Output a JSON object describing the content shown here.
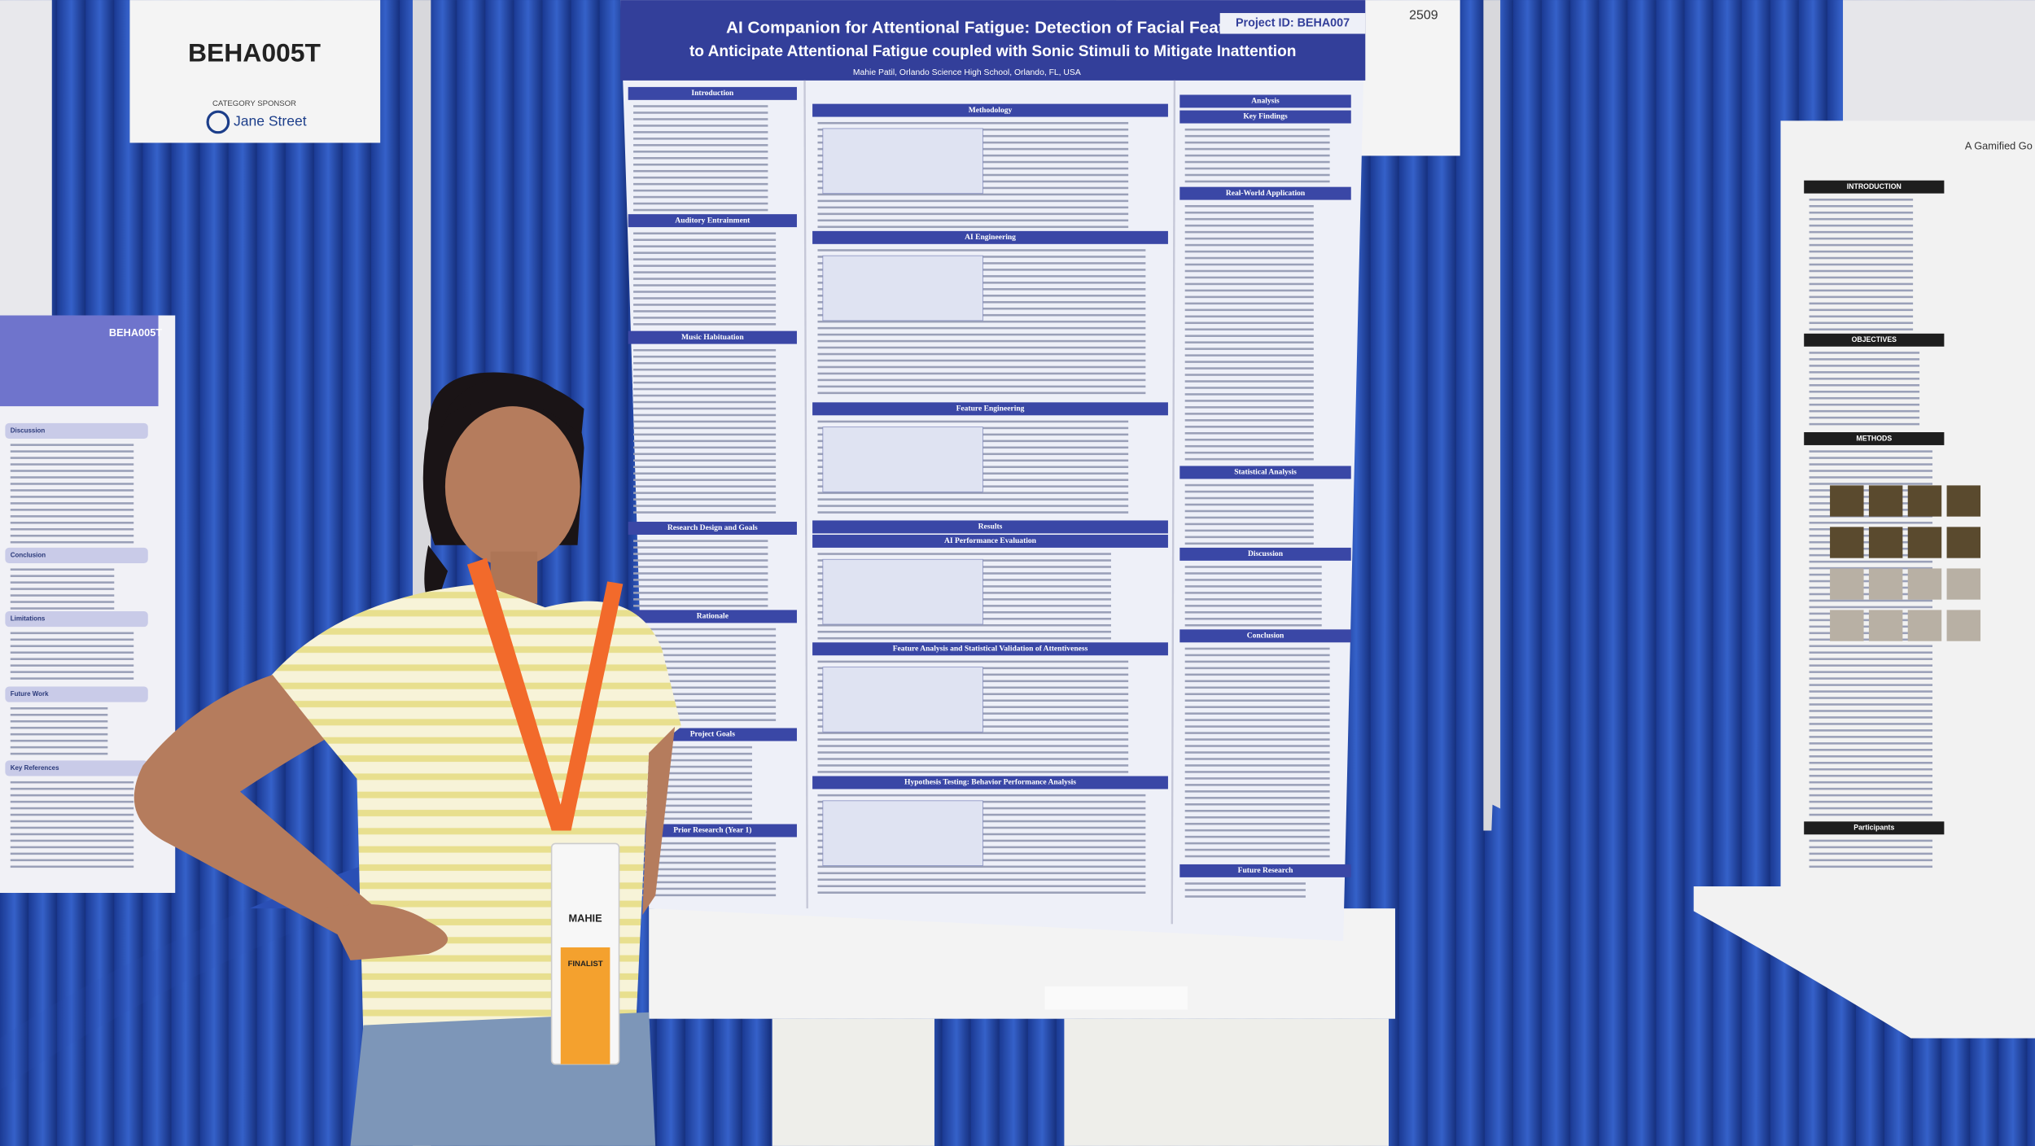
{
  "signs": {
    "left_id": "BEHA005T",
    "sponsor_label": "CATEGORY SPONSOR",
    "sponsor": "Jane Street",
    "right_number": "2509"
  },
  "poster": {
    "title_line1": "AI Companion for Attentional Fatigue: Detection of Facial Features",
    "title_line2": "to Anticipate Attentional Fatigue coupled with Sonic Stimuli to Mitigate Inattention",
    "project_id": "Project ID: BEHA007",
    "author": "Mahie Patil, Orlando Science High School, Orlando, FL, USA",
    "left_sections": [
      "Introduction",
      "Auditory Entrainment",
      "Music Habituation",
      "Research Design and Goals",
      "Rationale",
      "Project Goals",
      "Prior Research (Year 1)"
    ],
    "center_sections": [
      "Methodology",
      "AI Engineering",
      "Feature Engineering",
      "Results",
      "AI Performance Evaluation",
      "Feature Analysis and Statistical Validation of Attentiveness",
      "Hypothesis Testing: Behavior Performance Analysis"
    ],
    "right_sections": [
      "Analysis",
      "Key Findings",
      "Real-World Application",
      "Statistical Analysis",
      "Discussion",
      "Conclusion",
      "Future Research"
    ]
  },
  "left_poster": {
    "id": "BEHA005T",
    "sections": [
      "Discussion",
      "Conclusion",
      "Limitations",
      "Future Work",
      "Key References"
    ]
  },
  "right_poster": {
    "title": "A Gamified Go",
    "sections": [
      "INTRODUCTION",
      "OBJECTIVES",
      "METHODS",
      "Participants"
    ]
  },
  "badge": {
    "name": "MAHIE",
    "status": "FINALIST"
  }
}
